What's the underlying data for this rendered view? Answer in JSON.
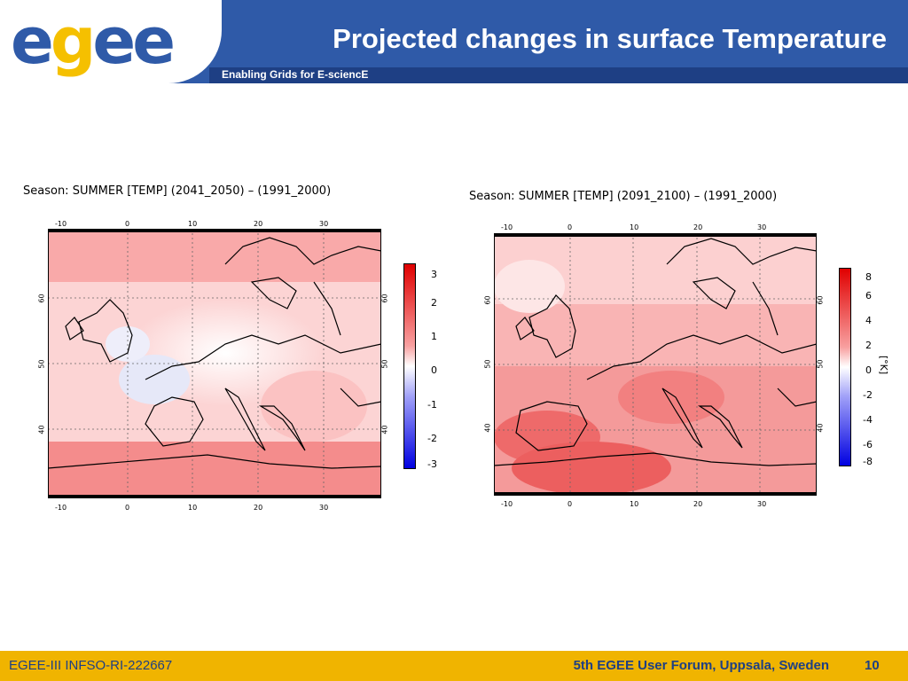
{
  "header": {
    "logo_text": "egee",
    "title": "Projected changes in surface Temperature",
    "subtitle": "Enabling Grids for E-sciencE"
  },
  "maps": [
    {
      "title": "Season: SUMMER [TEMP] (2041_2050) – (1991_2000)",
      "lon_ticks": [
        "-10",
        "0",
        "10",
        "20",
        "30"
      ],
      "lat_ticks": [
        "60",
        "50",
        "40"
      ],
      "colorbar": [
        "3",
        "2",
        "1",
        "0",
        "-1",
        "-2",
        "-3"
      ],
      "unit": ""
    },
    {
      "title": "Season: SUMMER [TEMP] (2091_2100) – (1991_2000)",
      "lon_ticks": [
        "-10",
        "0",
        "10",
        "20",
        "30"
      ],
      "lat_ticks": [
        "60",
        "50",
        "40"
      ],
      "colorbar": [
        "8",
        "6",
        "4",
        "2",
        "0",
        "-2",
        "-4",
        "-6",
        "-8"
      ],
      "unit": "[°K]"
    }
  ],
  "footer": {
    "left": "EGEE-III INFSO-RI-222667",
    "event": "5th EGEE User Forum, Uppsala, Sweden",
    "page": "10"
  },
  "colors": {
    "header_blue": "#2f5aa8",
    "footer_gold": "#f0b400",
    "logo_blue": "#2f5aa8",
    "logo_yellow": "#f5c000"
  }
}
